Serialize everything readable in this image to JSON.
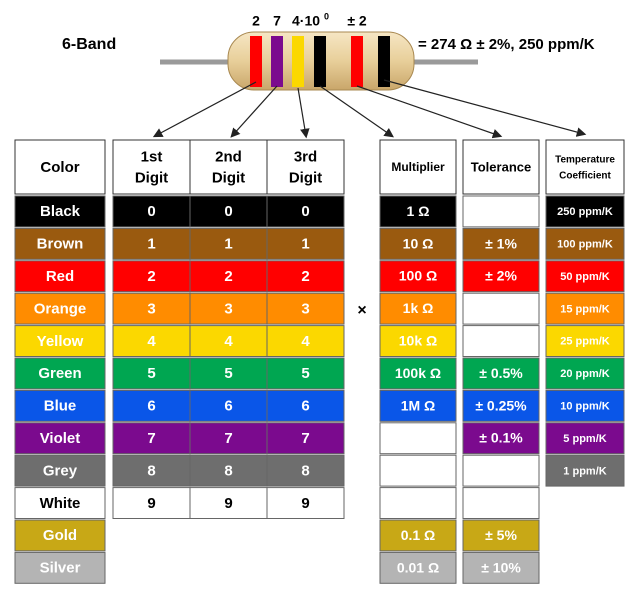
{
  "header": {
    "label": "6-Band",
    "annotations": [
      "2",
      "7",
      "4·10",
      "0",
      "± 2"
    ],
    "result": "= 274 Ω ± 2%, 250 ppm/K"
  },
  "table": {
    "headers": {
      "color": [
        "Color"
      ],
      "digit1": [
        "1st",
        "Digit"
      ],
      "digit2": [
        "2nd",
        "Digit"
      ],
      "digit3": [
        "3rd",
        "Digit"
      ],
      "multiplier": [
        "Multiplier"
      ],
      "tolerance": [
        "Tolerance"
      ],
      "tempco": [
        "Temperature",
        "Coefficient"
      ]
    },
    "operator": "×",
    "rows": [
      {
        "name": "Black",
        "color": "#000000",
        "digit": "0",
        "multiplier": "1 Ω",
        "tolerance": null,
        "tempco": "250 ppm/K"
      },
      {
        "name": "Brown",
        "color": "#9a5a0f",
        "digit": "1",
        "multiplier": "10 Ω",
        "tolerance": "± 1%",
        "tempco": "100 ppm/K"
      },
      {
        "name": "Red",
        "color": "#ff0000",
        "digit": "2",
        "multiplier": "100 Ω",
        "tolerance": "± 2%",
        "tempco": "50 ppm/K"
      },
      {
        "name": "Orange",
        "color": "#ff8c00",
        "digit": "3",
        "multiplier": "1k Ω",
        "tolerance": null,
        "tempco": "15 ppm/K"
      },
      {
        "name": "Yellow",
        "color": "#fbd800",
        "digit": "4",
        "multiplier": "10k Ω",
        "tolerance": null,
        "tempco": "25 ppm/K"
      },
      {
        "name": "Green",
        "color": "#00a651",
        "digit": "5",
        "multiplier": "100k Ω",
        "tolerance": "± 0.5%",
        "tempco": "20 ppm/K"
      },
      {
        "name": "Blue",
        "color": "#0a56e8",
        "digit": "6",
        "multiplier": "1M Ω",
        "tolerance": "± 0.25%",
        "tempco": "10 ppm/K"
      },
      {
        "name": "Violet",
        "color": "#7b0a8e",
        "digit": "7",
        "multiplier": null,
        "tolerance": "± 0.1%",
        "tempco": "5 ppm/K"
      },
      {
        "name": "Grey",
        "color": "#6e6e6e",
        "digit": "8",
        "multiplier": null,
        "tolerance": null,
        "tempco": "1 ppm/K"
      },
      {
        "name": "White",
        "color": "#ffffff",
        "digit": "9",
        "multiplier": null,
        "tolerance": null,
        "tempco": null
      },
      {
        "name": "Gold",
        "color": "#c8a816",
        "digit": null,
        "multiplier": "0.1 Ω",
        "tolerance": "± 5%",
        "tempco": null
      },
      {
        "name": "Silver",
        "color": "#b4b4b4",
        "digit": null,
        "multiplier": "0.01 Ω",
        "tolerance": "± 10%",
        "tempco": null
      }
    ]
  }
}
